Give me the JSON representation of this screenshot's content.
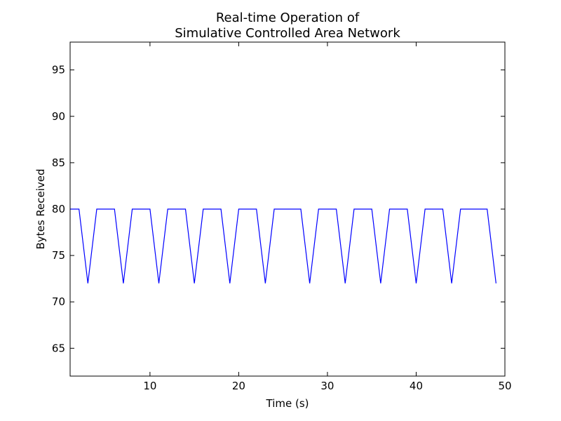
{
  "chart_data": {
    "type": "line",
    "title_lines": [
      "Real-time Operation of",
      "Simulative Controlled Area Network"
    ],
    "xlabel": "Time (s)",
    "ylabel": "Bytes Received",
    "xlim": [
      1,
      50
    ],
    "ylim": [
      62,
      98
    ],
    "x_ticks": [
      10,
      20,
      30,
      40,
      50
    ],
    "y_ticks": [
      65,
      70,
      75,
      80,
      85,
      90,
      95
    ],
    "grid": false,
    "series": [
      {
        "color": "#0000ff",
        "x": [
          1,
          2,
          3,
          4,
          5,
          6,
          7,
          8,
          9,
          10,
          11,
          12,
          13,
          14,
          15,
          16,
          17,
          18,
          19,
          20,
          21,
          22,
          23,
          24,
          25,
          26,
          27,
          28,
          29,
          30,
          31,
          32,
          33,
          34,
          35,
          36,
          37,
          38,
          39,
          40,
          41,
          42,
          43,
          44,
          45,
          46,
          47,
          48,
          49
        ],
        "y": [
          80,
          80,
          72,
          80,
          80,
          80,
          72,
          80,
          80,
          80,
          72,
          80,
          80,
          80,
          72,
          80,
          80,
          80,
          72,
          80,
          80,
          80,
          72,
          80,
          80,
          80,
          80,
          72,
          80,
          80,
          80,
          72,
          80,
          80,
          80,
          72,
          80,
          80,
          80,
          72,
          80,
          80,
          80,
          72,
          80,
          80,
          80,
          80,
          72
        ]
      }
    ]
  }
}
